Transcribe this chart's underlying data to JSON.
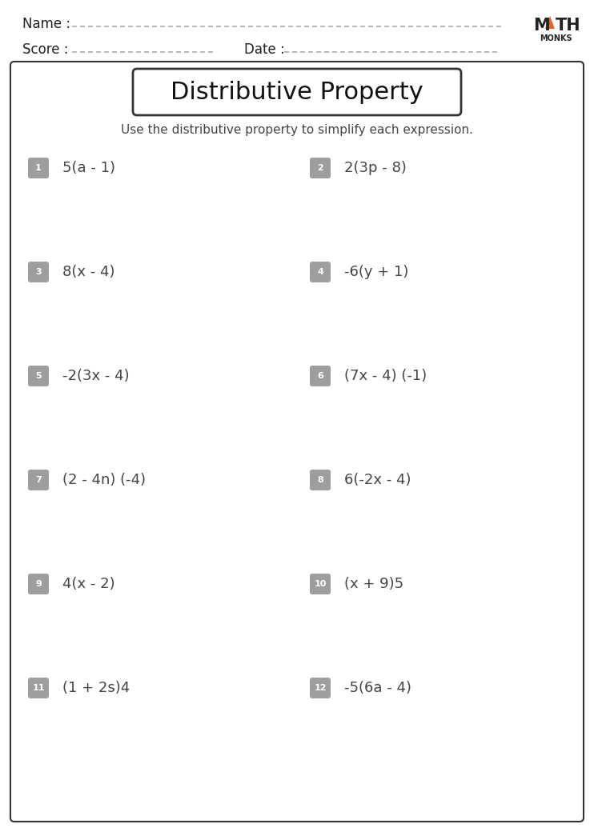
{
  "title": "Distributive Property",
  "instruction": "Use the distributive property to simplify each expression.",
  "problems": [
    {
      "num": "1",
      "expr": "5(a - 1)"
    },
    {
      "num": "2",
      "expr": "2(3p - 8)"
    },
    {
      "num": "3",
      "expr": "8(x - 4)"
    },
    {
      "num": "4",
      "expr": "-6(y + 1)"
    },
    {
      "num": "5",
      "expr": "-2(3x - 4)"
    },
    {
      "num": "6",
      "expr": "(7x - 4) (-1)"
    },
    {
      "num": "7",
      "expr": "(2 - 4n) (-4)"
    },
    {
      "num": "8",
      "expr": "6(-2x - 4)"
    },
    {
      "num": "9",
      "expr": "4(x - 2)"
    },
    {
      "num": "10",
      "expr": "(x + 9)5"
    },
    {
      "num": "11",
      "expr": "(1 + 2s)4"
    },
    {
      "num": "12",
      "expr": "-5(6a - 4)"
    }
  ],
  "name_label": "Name :",
  "score_label": "Score :",
  "date_label": "Date :",
  "bg_color": "#ffffff",
  "border_color": "#333333",
  "num_badge_color": "#9e9e9e",
  "num_badge_text_color": "#ffffff",
  "title_fontsize": 22,
  "instruction_fontsize": 11,
  "problem_fontsize": 13,
  "header_fontsize": 12,
  "logo_M_color": "#222222",
  "logo_A_color": "#e8622a",
  "logo_text_color": "#222222"
}
